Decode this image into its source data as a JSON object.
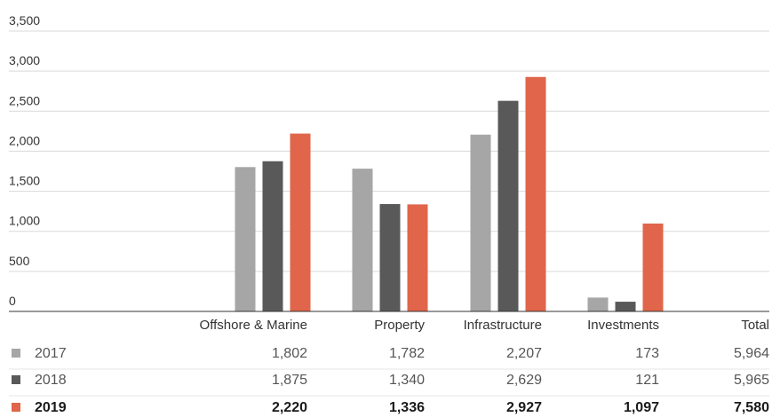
{
  "chart_data": {
    "type": "bar",
    "categories": [
      "Offshore & Marine",
      "Property",
      "Infrastructure",
      "Investments"
    ],
    "total_label": "Total",
    "series": [
      {
        "name": "2017",
        "values": [
          1802,
          1782,
          2207,
          173
        ],
        "total": 5964,
        "color": "#a6a6a6",
        "bold": false,
        "labels": [
          "1,802",
          "1,782",
          "2,207",
          "173"
        ],
        "total_label": "5,964"
      },
      {
        "name": "2018",
        "values": [
          1875,
          1340,
          2629,
          121
        ],
        "total": 5965,
        "color": "#595959",
        "bold": false,
        "labels": [
          "1,875",
          "1,340",
          "2,629",
          "121"
        ],
        "total_label": "5,965"
      },
      {
        "name": "2019",
        "values": [
          2220,
          1336,
          2927,
          1097
        ],
        "total": 7580,
        "color": "#e0654a",
        "bold": true,
        "labels": [
          "2,220",
          "1,336",
          "2,927",
          "1,097"
        ],
        "total_label": "7,580"
      }
    ],
    "y_ticks": [
      0,
      500,
      1000,
      1500,
      2000,
      2500,
      3000,
      3500
    ],
    "y_tick_labels": [
      "0",
      "500",
      "1,000",
      "1,500",
      "2,000",
      "2,500",
      "3,000",
      "3,500"
    ],
    "ylim": [
      0,
      3500
    ],
    "grid": true,
    "legend": "table-below"
  }
}
